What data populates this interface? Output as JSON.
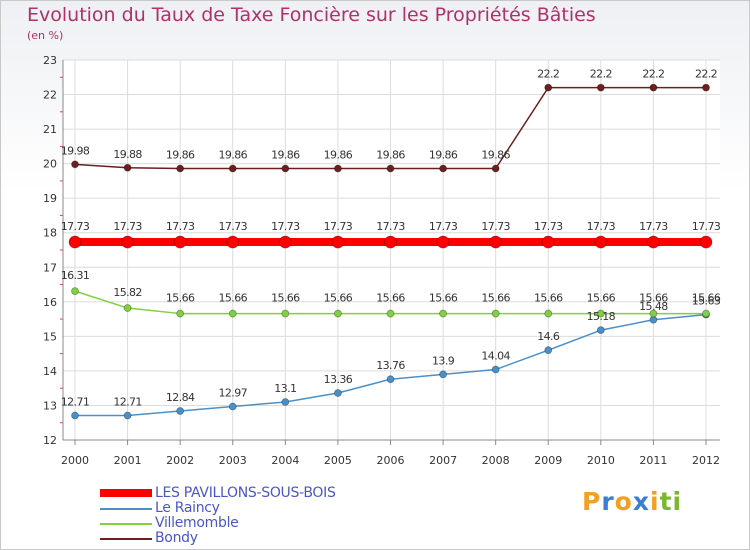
{
  "chart_data": {
    "type": "line",
    "title": "Evolution du Taux de Taxe Foncière sur les Propriétés Bâties",
    "subtitle": "(en %)",
    "xlabel": "",
    "ylabel": "(en %)",
    "categories": [
      "2000",
      "2001",
      "2002",
      "2003",
      "2004",
      "2005",
      "2006",
      "2007",
      "2008",
      "2009",
      "2010",
      "2011",
      "2012"
    ],
    "ylim": [
      12,
      23
    ],
    "yticks": [
      12,
      13,
      14,
      15,
      16,
      17,
      18,
      19,
      20,
      21,
      22,
      23
    ],
    "series": [
      {
        "name": "LES PAVILLONS-SOUS-BOIS",
        "color": "#ff0000",
        "values": [
          17.73,
          17.73,
          17.73,
          17.73,
          17.73,
          17.73,
          17.73,
          17.73,
          17.73,
          17.73,
          17.73,
          17.73,
          17.73
        ],
        "labels": [
          "17.73",
          "17.73",
          "17.73",
          "17.73",
          "17.73",
          "17.73",
          "17.73",
          "17.73",
          "17.73",
          "17.73",
          "17.73",
          "17.73",
          "17.73"
        ]
      },
      {
        "name": "Le Raincy",
        "color": "#4a90c8",
        "values": [
          12.71,
          12.71,
          12.84,
          12.97,
          13.1,
          13.36,
          13.76,
          13.9,
          14.04,
          14.6,
          15.18,
          15.48,
          15.63
        ],
        "labels": [
          "12.71",
          "12.71",
          "12.84",
          "12.97",
          "13.1",
          "13.36",
          "13.76",
          "13.9",
          "14.04",
          "14.6",
          "15.18",
          "15.48",
          "15.63"
        ]
      },
      {
        "name": "Villemomble",
        "color": "#80d040",
        "values": [
          16.31,
          15.82,
          15.66,
          15.66,
          15.66,
          15.66,
          15.66,
          15.66,
          15.66,
          15.66,
          15.66,
          15.66,
          15.66
        ],
        "labels": [
          "16.31",
          "15.82",
          "15.66",
          "15.66",
          "15.66",
          "15.66",
          "15.66",
          "15.66",
          "15.66",
          "15.66",
          "15.66",
          "15.66",
          "15.66"
        ]
      },
      {
        "name": "Bondy",
        "color": "#6b1f1f",
        "values": [
          19.98,
          19.88,
          19.86,
          19.86,
          19.86,
          19.86,
          19.86,
          19.86,
          19.86,
          22.2,
          22.2,
          22.2,
          22.2
        ],
        "labels": [
          "19.98",
          "19.88",
          "19.86",
          "19.86",
          "19.86",
          "19.86",
          "19.86",
          "19.86",
          "19.86",
          "22.2",
          "22.2",
          "22.2",
          "22.2"
        ]
      }
    ]
  },
  "legend": {
    "items": [
      {
        "label": "LES PAVILLONS-SOUS-BOIS",
        "color": "#ff0000"
      },
      {
        "label": "Le Raincy",
        "color": "#4a90c8"
      },
      {
        "label": "Villemomble",
        "color": "#80d040"
      },
      {
        "label": "Bondy",
        "color": "#6b1f1f"
      }
    ]
  },
  "logo": {
    "letters": [
      "P",
      "r",
      "o",
      "x",
      "i",
      "t",
      "i"
    ],
    "colors": [
      "#f2a020",
      "#3a7fd0",
      "#f2a020",
      "#3a7fd0",
      "#f2a020",
      "#7ab82e",
      "#7ab82e"
    ]
  }
}
